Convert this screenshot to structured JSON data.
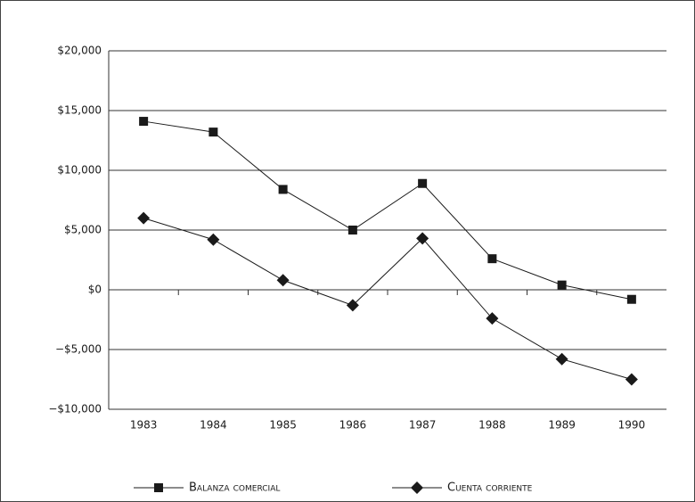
{
  "chart_data": {
    "type": "line",
    "categories": [
      "1983",
      "1984",
      "1985",
      "1986",
      "1987",
      "1988",
      "1989",
      "1990"
    ],
    "series": [
      {
        "name": "Balanza comercial",
        "color": "#1a1a1a",
        "marker": "square",
        "values": [
          14100,
          13200,
          8400,
          5000,
          8900,
          2600,
          400,
          -800
        ]
      },
      {
        "name": "Cuenta corriente",
        "color": "#1a1a1a",
        "marker": "diamond",
        "values": [
          6000,
          4200,
          800,
          -1300,
          4300,
          -2400,
          -5800,
          -7500
        ]
      }
    ],
    "ylim": [
      -10000,
      20000
    ],
    "yticks": [
      {
        "value": -10000,
        "label": "−$10,000"
      },
      {
        "value": -5000,
        "label": "−$5,000"
      },
      {
        "value": 0,
        "label": "$0"
      },
      {
        "value": 5000,
        "label": "$5,000"
      },
      {
        "value": 10000,
        "label": "$10,000"
      },
      {
        "value": 15000,
        "label": "$15,000"
      },
      {
        "value": 20000,
        "label": "$20,000"
      }
    ],
    "grid": true,
    "legend": "bottom"
  }
}
